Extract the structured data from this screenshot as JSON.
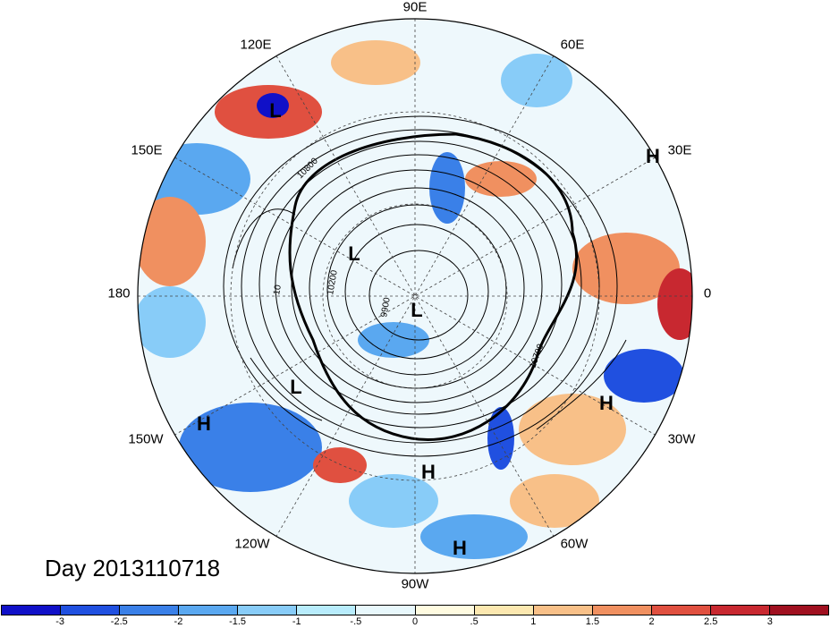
{
  "day_label": "Day 2013110718",
  "longitude_labels": {
    "top": "90E",
    "e120": "120E",
    "e60": "60E",
    "e150": "150E",
    "e30": "30E",
    "w180": "180",
    "zero": "0",
    "w150": "150W",
    "w30": "30W",
    "w120": "120W",
    "w60": "60W",
    "w90": "90W"
  },
  "contour_labels": [
    "10800",
    "10200",
    "9900",
    "10700",
    "10"
  ],
  "pressure_centers": [
    {
      "id": "L1",
      "text": "L"
    },
    {
      "id": "H1",
      "text": "H"
    },
    {
      "id": "L2",
      "text": "L"
    },
    {
      "id": "L3",
      "text": "L"
    },
    {
      "id": "L4",
      "text": "L"
    },
    {
      "id": "H2",
      "text": "H"
    },
    {
      "id": "H3",
      "text": "H"
    },
    {
      "id": "H4",
      "text": "H"
    },
    {
      "id": "H5",
      "text": "H"
    }
  ],
  "colorbar": {
    "colors": [
      "#1010c8",
      "#2050e0",
      "#3a80e8",
      "#5aa8f0",
      "#88ccf8",
      "#b8ecfc",
      "#e8f8fc",
      "#fffbe0",
      "#fce8b0",
      "#f8c088",
      "#f09060",
      "#e05040",
      "#c82830",
      "#a01020"
    ],
    "tick_labels": [
      "-3",
      "-2.5",
      "-2",
      "-1.5",
      "-1",
      "-.5",
      "0",
      ".5",
      "1",
      "1.5",
      "2",
      "2.5",
      "3"
    ]
  }
}
